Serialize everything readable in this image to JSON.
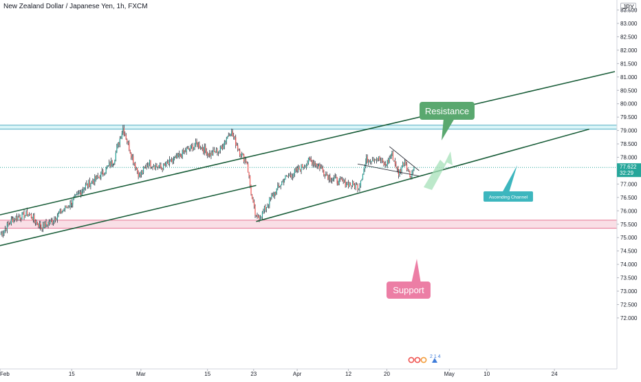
{
  "header": {
    "symbol_title": "New Zealand Dollar / Japanese Yen, 1h, FXCM",
    "currency_badge": "JPY"
  },
  "colors": {
    "up": "#26a69a",
    "down": "#ef5350",
    "candle_line": "#2a2e39",
    "channel": "#1b5e3a",
    "resistance_zone": "#b2ebf2",
    "resistance_line": "#4dabc0",
    "support_zone": "#f8d7e0",
    "support_line": "#e57391",
    "resistance_label_bg": "#5aa86f",
    "support_label_bg": "#ec7ea5",
    "channel_label_bg": "#3db6be",
    "price_label_bg": "#26a69a",
    "arrow": "#a6e0b8"
  },
  "price_label": {
    "value": "77.622",
    "countdown": "32:29"
  },
  "annotations": {
    "resistance": "Resistance",
    "support": "Support",
    "ascending_channel": "Ascending Channel"
  },
  "chart_data": {
    "type": "candlestick",
    "title": "New Zealand Dollar / Japanese Yen, 1h, FXCM",
    "timeframe": "1h",
    "ylim": [
      71.8,
      84.0
    ],
    "y_ticks": [
      "72.000",
      "72.500",
      "73.000",
      "73.500",
      "74.000",
      "74.500",
      "75.000",
      "75.500",
      "76.000",
      "76.500",
      "77.000",
      "77.500",
      "78.000",
      "78.500",
      "79.000",
      "79.500",
      "80.000",
      "80.500",
      "81.000",
      "81.500",
      "82.000",
      "82.500",
      "83.000",
      "83.500"
    ],
    "x_ticks": [
      "Feb",
      "15",
      "Mar",
      "15",
      "23",
      "Apr",
      "12",
      "20",
      "May",
      "10",
      "24"
    ],
    "x_tick_index": [
      0,
      140,
      275,
      405,
      495,
      580,
      680,
      755,
      877,
      950,
      1082
    ],
    "price_path": [
      {
        "i": 0,
        "p": 75.1
      },
      {
        "i": 25,
        "p": 75.7
      },
      {
        "i": 55,
        "p": 75.9
      },
      {
        "i": 80,
        "p": 75.4
      },
      {
        "i": 100,
        "p": 75.6
      },
      {
        "i": 115,
        "p": 75.9
      },
      {
        "i": 140,
        "p": 76.3
      },
      {
        "i": 165,
        "p": 76.9
      },
      {
        "i": 195,
        "p": 77.3
      },
      {
        "i": 222,
        "p": 77.9
      },
      {
        "i": 240,
        "p": 79.1
      },
      {
        "i": 258,
        "p": 78.0
      },
      {
        "i": 272,
        "p": 77.3
      },
      {
        "i": 290,
        "p": 77.8
      },
      {
        "i": 315,
        "p": 77.6
      },
      {
        "i": 340,
        "p": 77.9
      },
      {
        "i": 360,
        "p": 78.2
      },
      {
        "i": 385,
        "p": 78.5
      },
      {
        "i": 410,
        "p": 78.1
      },
      {
        "i": 430,
        "p": 78.3
      },
      {
        "i": 450,
        "p": 79.0
      },
      {
        "i": 468,
        "p": 78.2
      },
      {
        "i": 482,
        "p": 77.8
      },
      {
        "i": 492,
        "p": 76.4
      },
      {
        "i": 500,
        "p": 75.7
      },
      {
        "i": 512,
        "p": 75.9
      },
      {
        "i": 530,
        "p": 76.5
      },
      {
        "i": 555,
        "p": 77.2
      },
      {
        "i": 580,
        "p": 77.5
      },
      {
        "i": 605,
        "p": 77.9
      },
      {
        "i": 622,
        "p": 77.7
      },
      {
        "i": 640,
        "p": 77.3
      },
      {
        "i": 660,
        "p": 77.1
      },
      {
        "i": 682,
        "p": 77.0
      },
      {
        "i": 700,
        "p": 76.9
      },
      {
        "i": 715,
        "p": 77.9
      },
      {
        "i": 735,
        "p": 78.0
      },
      {
        "i": 752,
        "p": 77.7
      },
      {
        "i": 765,
        "p": 78.1
      },
      {
        "i": 778,
        "p": 77.4
      },
      {
        "i": 790,
        "p": 77.9
      },
      {
        "i": 800,
        "p": 77.3
      },
      {
        "i": 808,
        "p": 77.62
      }
    ],
    "last_price": 77.622,
    "resistance_zone": [
      79.05,
      79.2
    ],
    "support_zone": [
      75.35,
      75.65
    ],
    "channel_upper": [
      {
        "i": 0,
        "p": 75.85
      },
      {
        "i": 1200,
        "p": 81.2
      }
    ],
    "channel_lower": [
      {
        "i": 500,
        "p": 75.6
      },
      {
        "i": 1150,
        "p": 79.05
      }
    ],
    "channel_lower_parallel": [
      {
        "i": 0,
        "p": 74.7
      },
      {
        "i": 500,
        "p": 76.95
      }
    ],
    "wedge_top": [
      {
        "i": 760,
        "p": 78.4
      },
      {
        "i": 818,
        "p": 77.5
      }
    ],
    "wedge_bottom": [
      {
        "i": 698,
        "p": 77.75
      },
      {
        "i": 818,
        "p": 77.3
      }
    ]
  }
}
